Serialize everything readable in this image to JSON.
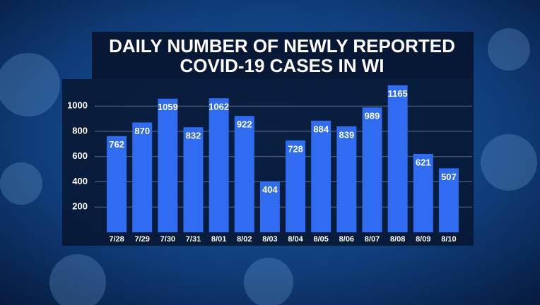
{
  "chart_data": {
    "type": "bar",
    "title": [
      "DAILY NUMBER OF NEWLY REPORTED",
      "COVID-19 CASES IN WI"
    ],
    "categories": [
      "7/28",
      "7/29",
      "7/30",
      "7/31",
      "8/01",
      "8/02",
      "8/03",
      "8/04",
      "8/05",
      "8/06",
      "8/07",
      "8/08",
      "8/09",
      "8/10"
    ],
    "values": [
      762,
      870,
      1059,
      832,
      1062,
      922,
      404,
      728,
      884,
      839,
      989,
      1165,
      621,
      507
    ],
    "color": "#2f6cf2",
    "ylim": [
      0,
      1200
    ],
    "yticks": [
      200,
      400,
      600,
      800,
      1000
    ],
    "grid": true
  }
}
